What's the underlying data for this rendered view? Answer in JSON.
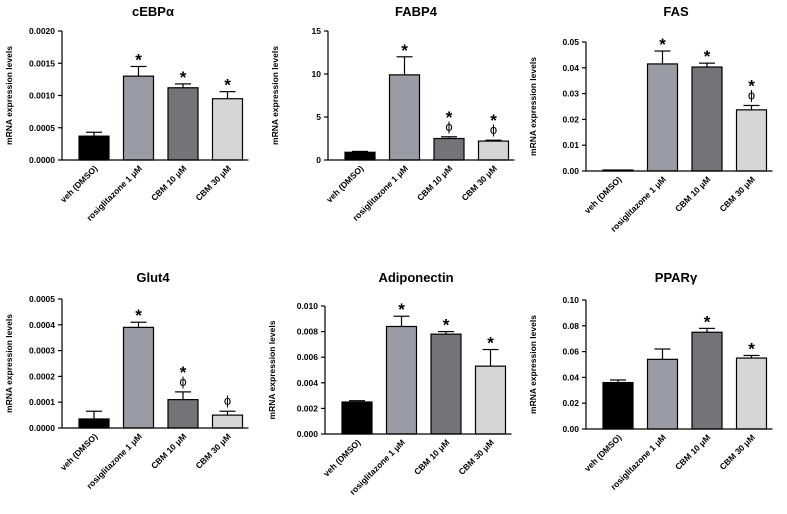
{
  "chart_data": [
    {
      "type": "bar",
      "title": "cEBPα",
      "ylabel": "mRNA expression levels",
      "categories": [
        "veh (DMSO)",
        "rosiglitazone 1 μM",
        "CBM 10 μM",
        "CBM 30 μM"
      ],
      "values": [
        0.00037,
        0.0013,
        0.00112,
        0.00095
      ],
      "errors": [
        6e-05,
        0.00015,
        6e-05,
        0.00011
      ],
      "ylim": [
        0,
        0.002
      ],
      "yticks": [
        "0.0000",
        "0.0005",
        "0.0010",
        "0.0015",
        "0.0020"
      ],
      "annotations": [
        [
          "",
          ""
        ],
        [
          "*",
          ""
        ],
        [
          "*",
          ""
        ],
        [
          "*",
          ""
        ]
      ]
    },
    {
      "type": "bar",
      "title": "FABP4",
      "ylabel": "mRNA expression levels",
      "categories": [
        "veh (DMSO)",
        "rosiglitazone 1 μM",
        "CBM 10 μM",
        "CBM 30 μM"
      ],
      "values": [
        0.9,
        9.9,
        2.5,
        2.2
      ],
      "errors": [
        0.1,
        2.1,
        0.2,
        0.1
      ],
      "ylim": [
        0,
        15
      ],
      "yticks": [
        "0",
        "5",
        "10",
        "15"
      ],
      "annotations": [
        [
          "",
          ""
        ],
        [
          "*",
          ""
        ],
        [
          "*",
          "ϕ"
        ],
        [
          "*",
          "ϕ"
        ]
      ]
    },
    {
      "type": "bar",
      "title": "FAS",
      "ylabel": "mRNA expression levels",
      "categories": [
        "veh (DMSO)",
        "rosiglitazone 1 μM",
        "CBM 10 μM",
        "CBM 30 μM"
      ],
      "values": [
        0.0002,
        0.0415,
        0.0403,
        0.0237
      ],
      "errors": [
        0.0001,
        0.005,
        0.0015,
        0.0017
      ],
      "ylim": [
        0,
        0.05
      ],
      "yticks": [
        "0.00",
        "0.01",
        "0.02",
        "0.03",
        "0.04",
        "0.05"
      ],
      "annotations": [
        [
          "",
          ""
        ],
        [
          "*",
          ""
        ],
        [
          "*",
          ""
        ],
        [
          "*",
          "ϕ"
        ]
      ]
    },
    {
      "type": "bar",
      "title": "Glut4",
      "ylabel": "mRNA expression levels",
      "categories": [
        "veh (DMSO)",
        "rosiglitazone 1 μM",
        "CBM 10 μM",
        "CBM 30 μM"
      ],
      "values": [
        3.5e-05,
        0.00039,
        0.00011,
        5e-05
      ],
      "errors": [
        3e-05,
        2e-05,
        3e-05,
        1.5e-05
      ],
      "ylim": [
        0,
        0.0005
      ],
      "yticks": [
        "0.0000",
        "0.0001",
        "0.0002",
        "0.0003",
        "0.0004",
        "0.0005"
      ],
      "annotations": [
        [
          "",
          ""
        ],
        [
          "*",
          ""
        ],
        [
          "*",
          "ϕ"
        ],
        [
          "",
          "ϕ"
        ]
      ]
    },
    {
      "type": "bar",
      "title": "Adiponectin",
      "ylabel": "mRNA expression levels",
      "categories": [
        "veh (DMSO)",
        "rosiglitazone 1 μM",
        "CBM 10 μM",
        "CBM 30 μM"
      ],
      "values": [
        0.0025,
        0.0084,
        0.0078,
        0.0053
      ],
      "errors": [
        0.0001,
        0.0008,
        0.0002,
        0.0013
      ],
      "ylim": [
        0,
        0.01
      ],
      "yticks": [
        "0.000",
        "0.002",
        "0.004",
        "0.006",
        "0.008",
        "0.010"
      ],
      "annotations": [
        [
          "",
          ""
        ],
        [
          "*",
          ""
        ],
        [
          "*",
          ""
        ],
        [
          "*",
          ""
        ]
      ]
    },
    {
      "type": "bar",
      "title": "PPARγ",
      "ylabel": "mRNA expression levels",
      "categories": [
        "veh (DMSO)",
        "rosiglitazone 1 μM",
        "CBM 10 μM",
        "CBM 30 μM"
      ],
      "values": [
        0.036,
        0.054,
        0.075,
        0.055
      ],
      "errors": [
        0.002,
        0.008,
        0.003,
        0.002
      ],
      "ylim": [
        0,
        0.1
      ],
      "yticks": [
        "0.00",
        "0.02",
        "0.04",
        "0.06",
        "0.08",
        "0.10"
      ],
      "annotations": [
        [
          "",
          ""
        ],
        [
          "",
          ""
        ],
        [
          "*",
          ""
        ],
        [
          "*",
          ""
        ]
      ]
    }
  ],
  "bar_colors": [
    "#000000",
    "#9b9ba3",
    "#747478",
    "#d6d6d6"
  ]
}
